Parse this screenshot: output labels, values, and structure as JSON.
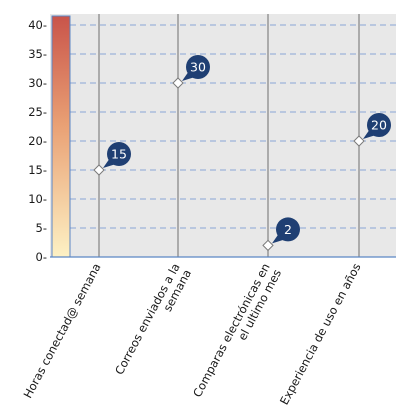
{
  "chart_data": {
    "type": "scatter",
    "categories": [
      "Horas conectad@ semana",
      "Correos enviados a la semana",
      "Comparas electrónicas en el ultimo mes",
      "Experiencia de uso en años"
    ],
    "category_lines": [
      [
        "Horas conectad@ semana"
      ],
      [
        "Correos enviados a la",
        "semana"
      ],
      [
        "Comparas electrónicas en",
        "el ultimo mes"
      ],
      [
        "Experiencia de uso en años"
      ]
    ],
    "values": [
      15,
      30,
      2,
      20
    ],
    "value_labels": [
      "15",
      "30",
      "2",
      "20"
    ],
    "y_ticks": [
      "0-",
      "5-",
      "10-",
      "15-",
      "20-",
      "25-",
      "30-",
      "35-",
      "40-"
    ],
    "ylim": [
      0,
      42
    ],
    "grid": true,
    "colors": {
      "plot_background": "#e8e8e8",
      "grid_dash": "#8aa6d6",
      "category_line": "#8a8a8a",
      "axis_line": "#5b86c4",
      "badge": "#1f3f73",
      "color_bar_top": "#c9544a",
      "color_bar_bottom": "#fdf1c4"
    }
  }
}
